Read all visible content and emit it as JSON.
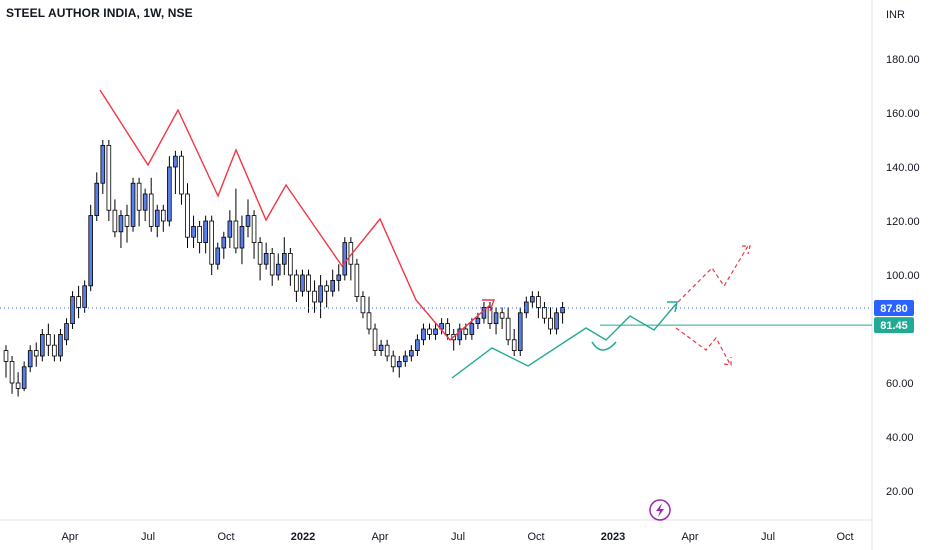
{
  "header": {
    "title": "STEEL AUTHOR INDIA, 1W, NSE"
  },
  "chart_data": {
    "type": "candlestick",
    "currency": "INR",
    "y_axis": {
      "ticks": [
        "180.00",
        "160.00",
        "140.00",
        "120.00",
        "100.00",
        "80.00",
        "60.00",
        "40.00",
        "20.00"
      ],
      "ylim": [
        14,
        194
      ]
    },
    "x_axis": {
      "ticks": [
        {
          "label": "Apr",
          "bold": false
        },
        {
          "label": "Jul",
          "bold": false
        },
        {
          "label": "Oct",
          "bold": false
        },
        {
          "label": "2022",
          "bold": true
        },
        {
          "label": "Apr",
          "bold": false
        },
        {
          "label": "Jul",
          "bold": false
        },
        {
          "label": "Oct",
          "bold": false
        },
        {
          "label": "2023",
          "bold": true
        },
        {
          "label": "Apr",
          "bold": false
        },
        {
          "label": "Jul",
          "bold": false
        },
        {
          "label": "Oct",
          "bold": false
        }
      ]
    },
    "price_labels": [
      {
        "value": "87.80",
        "color": "#2962ff"
      },
      {
        "value": "81.45",
        "color": "#22ab94"
      }
    ],
    "candles": [
      [
        72,
        68,
        74,
        62
      ],
      [
        68,
        60,
        70,
        56
      ],
      [
        60,
        58,
        64,
        55
      ],
      [
        58,
        66,
        68,
        57
      ],
      [
        66,
        72,
        74,
        64
      ],
      [
        72,
        70,
        75,
        66
      ],
      [
        70,
        78,
        80,
        68
      ],
      [
        78,
        74,
        82,
        70
      ],
      [
        74,
        70,
        78,
        68
      ],
      [
        70,
        78,
        80,
        68
      ],
      [
        76,
        82,
        84,
        74
      ],
      [
        82,
        92,
        94,
        80
      ],
      [
        92,
        88,
        96,
        84
      ],
      [
        88,
        96,
        98,
        86
      ],
      [
        96,
        122,
        126,
        94
      ],
      [
        122,
        134,
        138,
        120
      ],
      [
        134,
        148,
        150,
        130
      ],
      [
        148,
        124,
        150,
        120
      ],
      [
        124,
        116,
        128,
        114
      ],
      [
        116,
        122,
        124,
        110
      ],
      [
        122,
        118,
        126,
        112
      ],
      [
        118,
        134,
        136,
        116
      ],
      [
        134,
        124,
        136,
        118
      ],
      [
        124,
        130,
        132,
        120
      ],
      [
        130,
        118,
        136,
        116
      ],
      [
        118,
        124,
        126,
        114
      ],
      [
        124,
        120,
        126,
        116
      ],
      [
        120,
        140,
        144,
        118
      ],
      [
        140,
        144,
        146,
        130
      ],
      [
        144,
        130,
        146,
        126
      ],
      [
        130,
        114,
        134,
        110
      ],
      [
        114,
        118,
        122,
        110
      ],
      [
        118,
        112,
        120,
        108
      ],
      [
        112,
        120,
        122,
        108
      ],
      [
        120,
        104,
        122,
        100
      ],
      [
        104,
        110,
        112,
        102
      ],
      [
        110,
        114,
        116,
        106
      ],
      [
        114,
        120,
        124,
        110
      ],
      [
        120,
        110,
        132,
        108
      ],
      [
        110,
        118,
        122,
        104
      ],
      [
        118,
        122,
        128,
        114
      ],
      [
        122,
        112,
        124,
        106
      ],
      [
        112,
        104,
        114,
        98
      ],
      [
        104,
        108,
        112,
        102
      ],
      [
        108,
        100,
        110,
        96
      ],
      [
        100,
        104,
        108,
        98
      ],
      [
        104,
        108,
        114,
        100
      ],
      [
        108,
        100,
        110,
        96
      ],
      [
        100,
        94,
        102,
        90
      ],
      [
        94,
        100,
        102,
        92
      ],
      [
        100,
        94,
        102,
        86
      ],
      [
        94,
        90,
        98,
        86
      ],
      [
        90,
        96,
        100,
        84
      ],
      [
        96,
        94,
        98,
        88
      ],
      [
        94,
        98,
        102,
        92
      ],
      [
        98,
        100,
        104,
        94
      ],
      [
        100,
        112,
        114,
        98
      ],
      [
        112,
        104,
        114,
        98
      ],
      [
        104,
        92,
        106,
        90
      ],
      [
        92,
        86,
        94,
        84
      ],
      [
        86,
        80,
        92,
        78
      ],
      [
        80,
        72,
        82,
        70
      ],
      [
        72,
        74,
        76,
        70
      ],
      [
        74,
        70,
        76,
        68
      ],
      [
        70,
        66,
        72,
        64
      ],
      [
        66,
        68,
        70,
        62
      ],
      [
        68,
        70,
        72,
        66
      ],
      [
        70,
        72,
        74,
        68
      ],
      [
        72,
        76,
        78,
        70
      ],
      [
        76,
        80,
        82,
        74
      ],
      [
        80,
        78,
        82,
        76
      ],
      [
        78,
        80,
        82,
        76
      ],
      [
        80,
        82,
        84,
        78
      ],
      [
        82,
        78,
        84,
        76
      ],
      [
        78,
        76,
        80,
        72
      ],
      [
        76,
        80,
        82,
        74
      ],
      [
        80,
        78,
        82,
        76
      ],
      [
        78,
        82,
        84,
        76
      ],
      [
        82,
        84,
        86,
        80
      ],
      [
        84,
        88,
        90,
        82
      ],
      [
        88,
        82,
        90,
        80
      ],
      [
        82,
        86,
        88,
        78
      ],
      [
        86,
        84,
        88,
        80
      ],
      [
        84,
        76,
        88,
        74
      ],
      [
        76,
        72,
        80,
        70
      ],
      [
        72,
        86,
        88,
        70
      ],
      [
        86,
        90,
        92,
        84
      ],
      [
        90,
        92,
        94,
        88
      ],
      [
        92,
        88,
        94,
        84
      ],
      [
        88,
        84,
        90,
        82
      ],
      [
        84,
        80,
        88,
        78
      ],
      [
        80,
        86,
        88,
        78
      ],
      [
        86,
        88,
        90,
        82
      ]
    ]
  }
}
